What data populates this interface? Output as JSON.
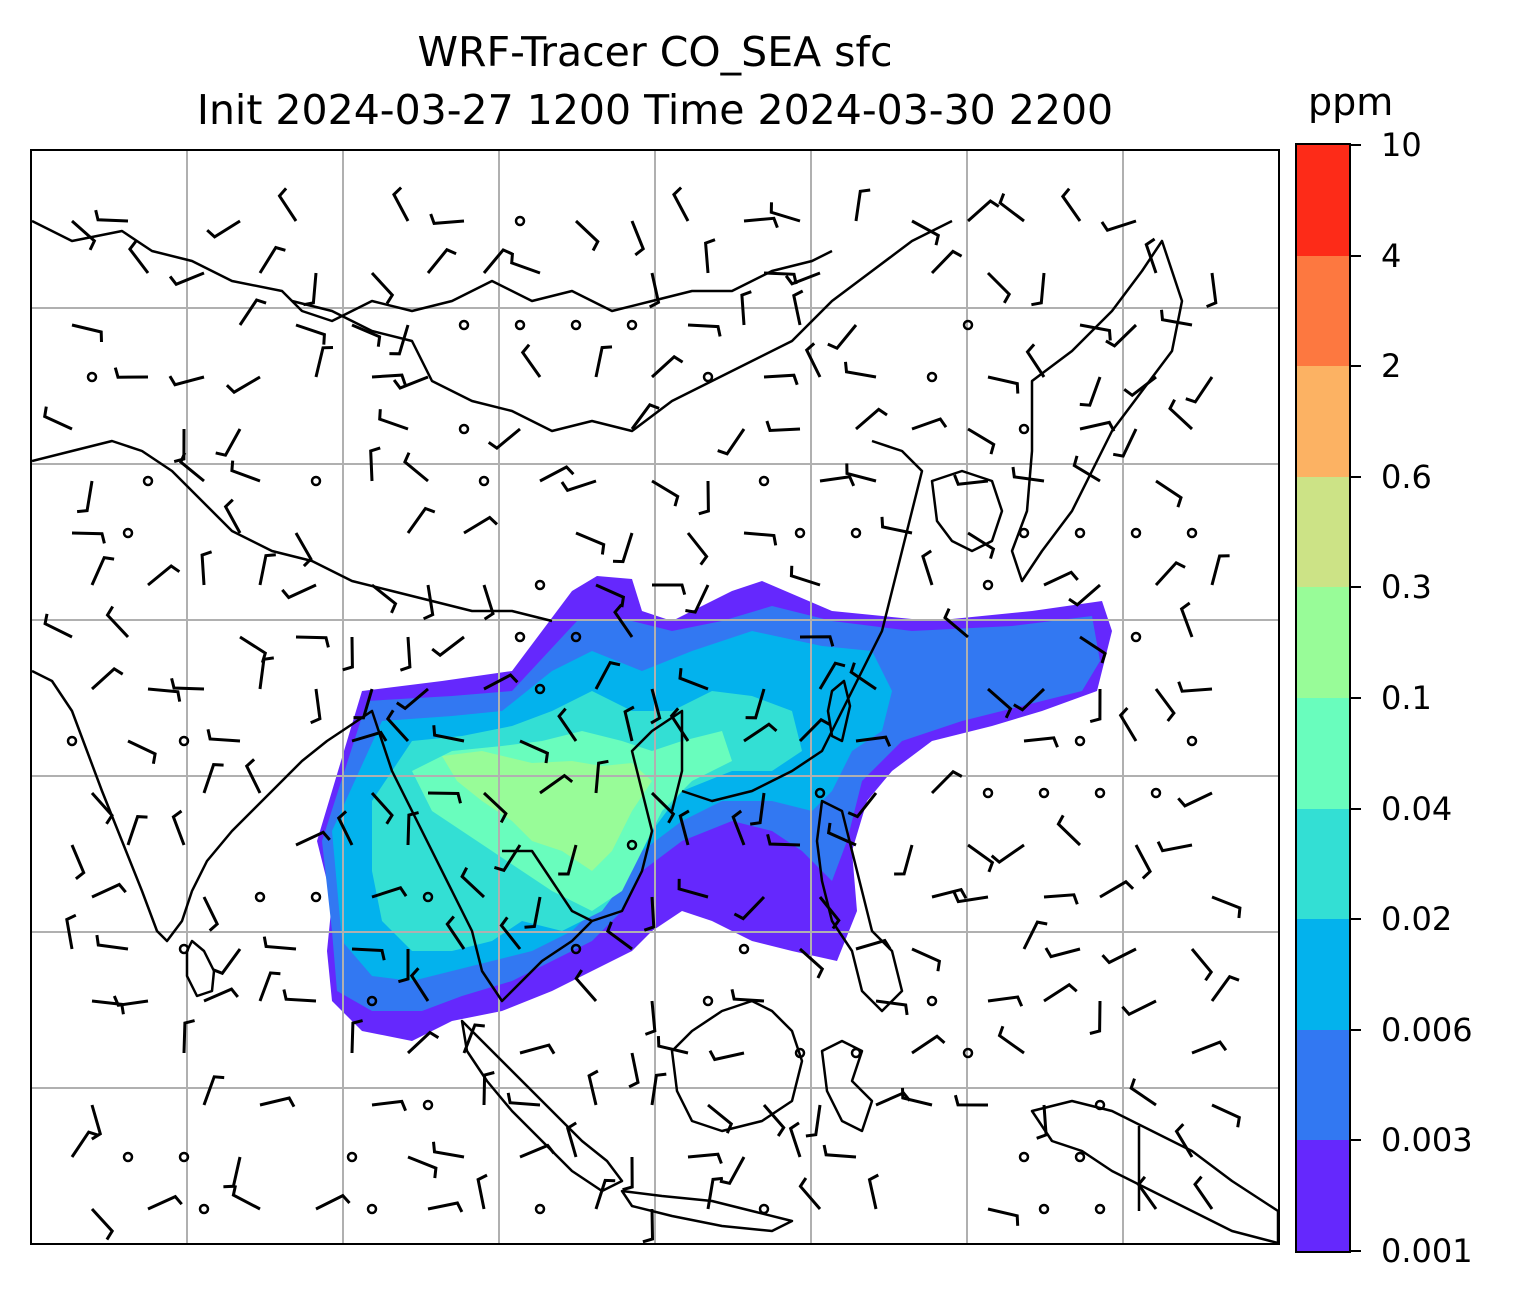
{
  "title": {
    "line1": "WRF-Tracer CO_SEA sfc",
    "line2": "Init 2024-03-27 1200 Time 2024-03-30 2200"
  },
  "map": {
    "description_region": "South and Southeast Asia, China, Indonesia",
    "gridlines": true,
    "coastline_color": "#000000",
    "gridline_color": "#b0b0b0",
    "wind_barbs": true
  },
  "colorbar": {
    "units": "ppm",
    "tick_labels": [
      "0.001",
      "0.003",
      "0.006",
      "0.02",
      "0.04",
      "0.1",
      "0.3",
      "0.6",
      "2",
      "4",
      "10"
    ],
    "levels": [
      0.001,
      0.003,
      0.006,
      0.02,
      0.04,
      0.1,
      0.3,
      0.6,
      2,
      4,
      10
    ],
    "colors": [
      "#6528fd",
      "#3278f2",
      "#03b2ed",
      "#33dfd4",
      "#69fdbd",
      "#98fc98",
      "#cce386",
      "#fcb263",
      "#fd7840",
      "#fd2b18"
    ]
  }
}
